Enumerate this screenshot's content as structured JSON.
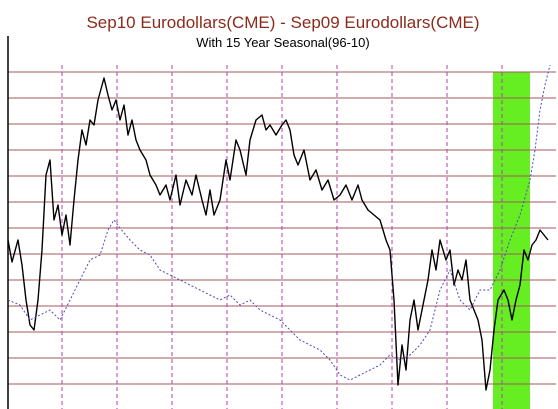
{
  "chart_data": {
    "type": "line",
    "title": "Sep10 Eurodollars(CME) - Sep09 Eurodollars(CME)",
    "subtitle": "With 15 Year Seasonal(96-10)",
    "xlim": [
      0,
      137
    ],
    "ylim": [
      0,
      345
    ],
    "xticks": [
      13.5,
      27.25,
      41,
      54.75,
      68.5,
      82.25,
      96,
      109.75,
      123.5
    ],
    "yticks": [
      26,
      52,
      78,
      104,
      130,
      156,
      182,
      208,
      234,
      260,
      286,
      312,
      338
    ],
    "grid": true,
    "x_grid_color": "#b03fb0",
    "y_grid_color": "#a05a5a",
    "highlight": {
      "from": 121.25,
      "to": 130.5,
      "color": "#66ee22"
    },
    "series": [
      {
        "color": "#000000",
        "style": "solid",
        "x": [
          0,
          1,
          2.5,
          3.5,
          4.5,
          5.5,
          6.5,
          7.5,
          8.5,
          9.5,
          10.5,
          11.5,
          12.5,
          13.5,
          14.5,
          15.5,
          16.5,
          17.5,
          18.5,
          19.5,
          20.5,
          21.5,
          22.5,
          24,
          25,
          26,
          27,
          28,
          29,
          30,
          31,
          32,
          33,
          34.5,
          35.5,
          37,
          38,
          39.5,
          40.5,
          42,
          43,
          44.5,
          46,
          47,
          48.5,
          49.5,
          50.5,
          51.5,
          53,
          54.5,
          55.5,
          57,
          58,
          59.5,
          60.5,
          62,
          63.5,
          64.5,
          65.5,
          67,
          68.5,
          69.5,
          70.5,
          71.5,
          72.5,
          74,
          75.5,
          77,
          78.5,
          80,
          81.5,
          83,
          84.5,
          86,
          87.5,
          88.5,
          90,
          91.5,
          93,
          94.5,
          95.5,
          96.5,
          97.5,
          98.5,
          99.5,
          100.5,
          101.5,
          102.5,
          104,
          105,
          106,
          107,
          108,
          109.5,
          110.5,
          111.5,
          112.5,
          113.5,
          114.5,
          115.5,
          116.5,
          117.5,
          118.5,
          119.5,
          120.5,
          121.5,
          122.5,
          124,
          125,
          126,
          127,
          128,
          129,
          130,
          131,
          132,
          133,
          134,
          135
        ],
        "values": [
          170,
          148,
          170,
          145,
          110,
          85,
          80,
          110,
          160,
          235,
          250,
          190,
          205,
          175,
          195,
          165,
          210,
          250,
          280,
          265,
          290,
          285,
          310,
          332,
          315,
          300,
          310,
          290,
          305,
          275,
          290,
          270,
          260,
          250,
          235,
          225,
          215,
          225,
          210,
          235,
          205,
          230,
          215,
          235,
          210,
          195,
          220,
          195,
          210,
          250,
          230,
          270,
          260,
          235,
          270,
          290,
          295,
          280,
          285,
          275,
          285,
          290,
          280,
          255,
          245,
          260,
          230,
          240,
          220,
          230,
          210,
          215,
          225,
          210,
          225,
          210,
          200,
          195,
          190,
          170,
          160,
          110,
          25,
          65,
          40,
          90,
          110,
          80,
          110,
          130,
          160,
          140,
          170,
          150,
          160,
          125,
          140,
          130,
          150,
          110,
          100,
          90,
          70,
          20,
          40,
          80,
          110,
          120,
          110,
          90,
          110,
          125,
          160,
          150,
          165,
          170,
          180,
          175,
          170
        ]
      },
      {
        "color": "#4a4ac0",
        "style": "dotted",
        "x": [
          0,
          3,
          5.5,
          8,
          10.5,
          13,
          15.5,
          18,
          20.5,
          23,
          25,
          26.5,
          28,
          30.5,
          33,
          35.5,
          38,
          40.5,
          43,
          45.5,
          48,
          50.5,
          53,
          55.5,
          58,
          60.5,
          63,
          65.5,
          68,
          70.5,
          73,
          75.5,
          78,
          80.5,
          83,
          85.5,
          88,
          90.5,
          93,
          95.5,
          98,
          100.5,
          103,
          105.5,
          108,
          110.5,
          113,
          115.5,
          118,
          120.5,
          123,
          125.5,
          128,
          130.5,
          131.75,
          133,
          134.25,
          135.5
        ],
        "values": [
          110,
          105,
          90,
          95,
          100,
          90,
          110,
          130,
          150,
          155,
          180,
          190,
          182,
          170,
          160,
          155,
          140,
          135,
          130,
          125,
          120,
          115,
          110,
          115,
          105,
          110,
          100,
          95,
          90,
          80,
          70,
          65,
          60,
          50,
          35,
          30,
          35,
          40,
          45,
          55,
          50,
          55,
          65,
          80,
          120,
          140,
          110,
          100,
          120,
          120,
          140,
          170,
          195,
          230,
          260,
          300,
          325,
          345
        ]
      }
    ]
  }
}
